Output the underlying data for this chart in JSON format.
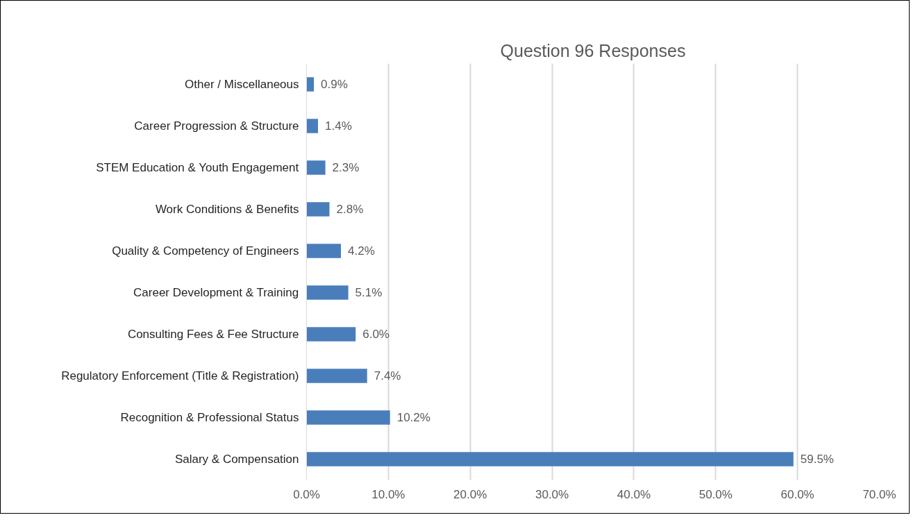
{
  "chart_data": {
    "type": "bar",
    "orientation": "horizontal",
    "title": "Question 96 Responses",
    "categories": [
      "Other / Miscellaneous",
      "Career Progression & Structure",
      "STEM Education & Youth Engagement",
      "Work Conditions & Benefits",
      "Quality & Competency of Engineers",
      "Career Development & Training",
      "Consulting Fees & Fee Structure",
      "Regulatory Enforcement (Title & Registration)",
      "Recognition & Professional Status",
      "Salary & Compensation"
    ],
    "values": [
      0.9,
      1.4,
      2.3,
      2.8,
      4.2,
      5.1,
      6.0,
      7.4,
      10.2,
      59.5
    ],
    "value_labels": [
      "0.9%",
      "1.4%",
      "2.3%",
      "2.8%",
      "4.2%",
      "5.1%",
      "6.0%",
      "7.4%",
      "10.2%",
      "59.5%"
    ],
    "color": "#4a7ebb",
    "xlim": [
      0,
      70
    ],
    "xticks": [
      {
        "value": 0,
        "label": "0.0%"
      },
      {
        "value": 10,
        "label": "10.0%"
      },
      {
        "value": 20,
        "label": "20.0%"
      },
      {
        "value": 30,
        "label": "30.0%"
      },
      {
        "value": 40,
        "label": "40.0%"
      },
      {
        "value": 50,
        "label": "50.0%"
      },
      {
        "value": 60,
        "label": "60.0%"
      },
      {
        "value": 70,
        "label": "70.0%"
      }
    ],
    "grid": "x"
  }
}
